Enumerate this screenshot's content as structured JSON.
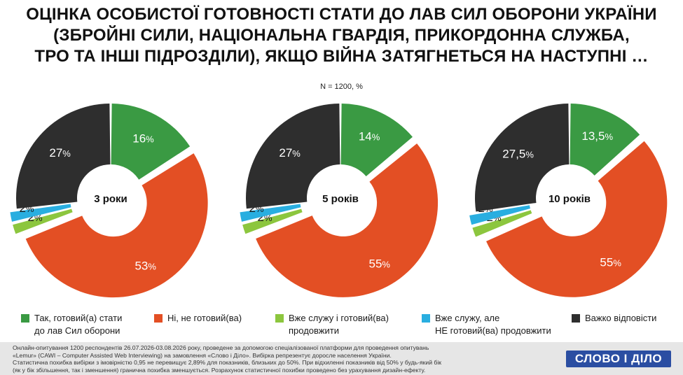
{
  "title_lines": [
    "ОЦІНКА ОСОБИСТОЇ ГОТОВНОСТІ СТАТИ ДО ЛАВ СИЛ ОБОРОНИ УКРАЇНИ",
    "(ЗБРОЙНІ СИЛИ, НАЦІОНАЛЬНА ГВАРДІЯ, ПРИКОРДОННА СЛУЖБА,",
    "ТРО ТА ІНШІ ПІДРОЗДІЛИ), ЯКЩО ВІЙНА ЗАТЯГНЕТЬСЯ НА НАСТУПНІ …"
  ],
  "subtitle": "N = 1200, %",
  "colors": {
    "yes": "#3a9a43",
    "no": "#e34f24",
    "serve_continue": "#8cc63e",
    "serve_not_continue": "#29aee0",
    "hard": "#2e2e2e"
  },
  "chart_data": [
    {
      "type": "pie",
      "center_label": "3 роки",
      "slices": [
        {
          "key": "yes",
          "value": 16,
          "label": "16"
        },
        {
          "key": "no",
          "value": 53,
          "label": "53"
        },
        {
          "key": "serve_continue",
          "value": 2,
          "label": "2"
        },
        {
          "key": "serve_not_continue",
          "value": 2,
          "label": "2"
        },
        {
          "key": "hard",
          "value": 27,
          "label": "27"
        }
      ]
    },
    {
      "type": "pie",
      "center_label": "5 років",
      "slices": [
        {
          "key": "yes",
          "value": 14,
          "label": "14"
        },
        {
          "key": "no",
          "value": 55,
          "label": "55"
        },
        {
          "key": "serve_continue",
          "value": 2,
          "label": "2"
        },
        {
          "key": "serve_not_continue",
          "value": 2,
          "label": "2"
        },
        {
          "key": "hard",
          "value": 27,
          "label": "27"
        }
      ]
    },
    {
      "type": "pie",
      "center_label": "10 років",
      "slices": [
        {
          "key": "yes",
          "value": 13.5,
          "label": "13,5"
        },
        {
          "key": "no",
          "value": 55,
          "label": "55"
        },
        {
          "key": "serve_continue",
          "value": 2,
          "label": "2"
        },
        {
          "key": "serve_not_continue",
          "value": 2,
          "label": "2"
        },
        {
          "key": "hard",
          "value": 27.5,
          "label": "27,5"
        }
      ]
    }
  ],
  "percent_sign": "%",
  "legend": [
    {
      "key": "yes",
      "lines": [
        "Так, готовий(а) стати",
        "до лав Сил оборони"
      ]
    },
    {
      "key": "no",
      "lines": [
        "Ні, не готовий(ва)"
      ]
    },
    {
      "key": "serve_continue",
      "lines": [
        "Вже служу і готовий(ва)",
        "продовжити"
      ]
    },
    {
      "key": "serve_not_continue",
      "lines": [
        "Вже служу, але",
        "НЕ готовий(ва) продовжити"
      ]
    },
    {
      "key": "hard",
      "lines": [
        "Важко відповісти"
      ]
    }
  ],
  "footnote_lines": [
    "Онлайн-опитування 1200 респондентів 26.07.2026-03.08.2026 року, проведене за допомогою спеціалізованої платформи для проведення опитувань",
    "«Lemur» (CAWI – Computer Assisted Web Interviewing) на замовлення «Слово і Діло». Вибірка репрезентує доросле населення України.",
    "Статистична похибка вибірки з імовірністю 0,95 не перевищує 2,89% для показників, близьких до 50%. При відхиленні показників від 50% у будь-який бік",
    "(як у бік збільшення, так і зменшення) гранична похибка зменшується. Розрахунок статистичної похибки проведено без урахування дизайн-ефекту."
  ],
  "logo_text": "СЛОВО І ДІЛО"
}
